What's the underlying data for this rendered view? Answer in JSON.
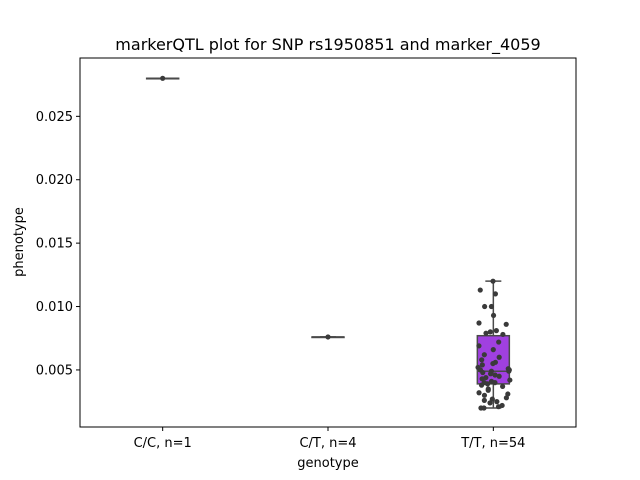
{
  "chart_data": {
    "type": "boxplot",
    "title": "markerQTL plot for SNP rs1950851 and marker_4059",
    "xlabel": "genotype",
    "ylabel": "phenotype",
    "categories": [
      "C/C, n=1",
      "C/T, n=4",
      "T/T, n=54"
    ],
    "ylim": [
      0.0005,
      0.0296
    ],
    "yticks": [
      0.005,
      0.01,
      0.015,
      0.02,
      0.025
    ],
    "ytick_labels": [
      "0.005",
      "0.010",
      "0.015",
      "0.020",
      "0.025"
    ],
    "grid": false,
    "box_color": "#a040e0",
    "point_color": "#3a3a3a",
    "boxes": [
      {
        "category": "C/C, n=1",
        "min": 0.028,
        "q1": 0.028,
        "median": 0.028,
        "q3": 0.028,
        "max": 0.028,
        "filled": false
      },
      {
        "category": "C/T, n=4",
        "min": 0.0076,
        "q1": 0.0076,
        "median": 0.0076,
        "q3": 0.0076,
        "max": 0.0076,
        "filled": false
      },
      {
        "category": "T/T, n=54",
        "min": 0.002,
        "q1": 0.0039,
        "median": 0.0049,
        "q3": 0.0077,
        "max": 0.012,
        "filled": true
      }
    ],
    "points": [
      {
        "category": "C/C, n=1",
        "values": [
          0.028
        ]
      },
      {
        "category": "C/T, n=4",
        "values": [
          0.0076
        ]
      },
      {
        "category": "T/T, n=54",
        "values": [
          0.012,
          0.011,
          0.0113,
          0.01,
          0.01,
          0.0093,
          0.0087,
          0.0086,
          0.0081,
          0.008,
          0.0079,
          0.0078,
          0.0072,
          0.0069,
          0.0066,
          0.0062,
          0.006,
          0.0058,
          0.0056,
          0.0055,
          0.0054,
          0.0052,
          0.0051,
          0.005,
          0.005,
          0.0049,
          0.0049,
          0.0048,
          0.0047,
          0.0046,
          0.0045,
          0.0044,
          0.0043,
          0.0042,
          0.0041,
          0.004,
          0.004,
          0.0039,
          0.0038,
          0.0037,
          0.0035,
          0.0034,
          0.0032,
          0.0031,
          0.003,
          0.0028,
          0.0027,
          0.0026,
          0.0025,
          0.0024,
          0.0022,
          0.0021,
          0.002,
          0.002
        ]
      }
    ]
  }
}
